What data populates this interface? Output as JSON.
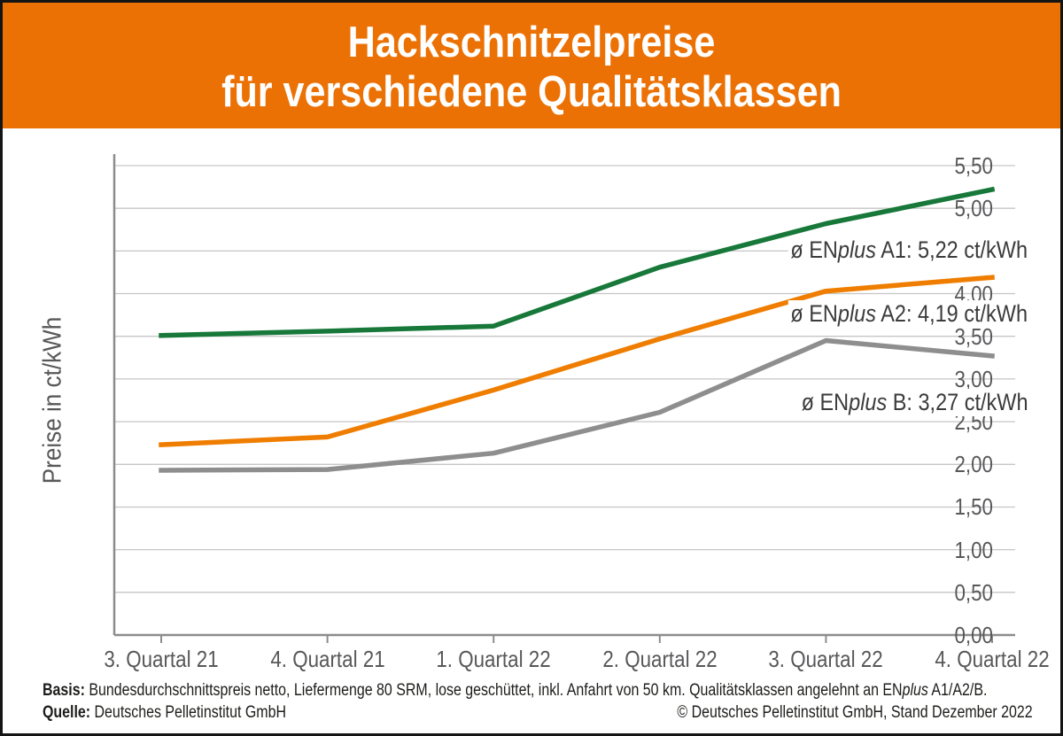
{
  "header": {
    "bg_color": "#ec7104",
    "text_color": "#ffffff",
    "title_line1": "Hackschnitzelpreise",
    "title_line2": "für verschiedene Qualitätsklassen"
  },
  "chart_data": {
    "type": "line",
    "title": "Hackschnitzelpreise für verschiedene Qualitätsklassen",
    "xlabel": "",
    "ylabel": "Preise in ct/kWh",
    "ylim": [
      0,
      5.5
    ],
    "ytick_step": 0.5,
    "ytick_labels": [
      "0,00",
      "0,50",
      "1,00",
      "1,50",
      "2,00",
      "2,50",
      "3,00",
      "3,50",
      "4,00",
      "4,50",
      "5,00",
      "5,50"
    ],
    "grid": true,
    "grid_color": "#c6c6c6",
    "axis_color": "#8c8c8c",
    "tick_text_color": "#58585a",
    "legend_position": "inline-right-of-lines",
    "categories": [
      "3. Quartal 21",
      "4. Quartal 21",
      "1. Quartal 22",
      "2. Quartal 22",
      "3. Quartal 22",
      "4. Quartal 22"
    ],
    "series": [
      {
        "name": "ENplus A1",
        "color": "#17783a",
        "values": [
          3.51,
          3.56,
          3.62,
          4.31,
          4.82,
          5.22
        ]
      },
      {
        "name": "ENplus A2",
        "color": "#ef7d00",
        "values": [
          2.23,
          2.32,
          2.87,
          3.47,
          4.03,
          4.19
        ]
      },
      {
        "name": "ENplus B",
        "color": "#8e8e8e",
        "values": [
          1.93,
          1.94,
          2.13,
          2.61,
          3.45,
          3.27
        ]
      }
    ]
  },
  "annotations": [
    {
      "pre": "ø EN",
      "italic": "plus",
      "post": " A1: 5,22 ct/kWh"
    },
    {
      "pre": "ø EN",
      "italic": "plus",
      "post": " A2: 4,19 ct/kWh"
    },
    {
      "pre": "ø EN",
      "italic": "plus",
      "post": " B: 3,27 ct/kWh"
    }
  ],
  "footer": {
    "basis_label": "Basis:",
    "basis_pre": " Bundesdurchschnittspreis netto, Liefermenge 80 SRM, lose geschüttet, inkl. Anfahrt von 50 km. Qualitätsklassen angelehnt an EN",
    "basis_italic": "plus",
    "basis_post": " A1/A2/B.",
    "quelle_label": "Quelle:",
    "quelle_text": " Deutsches Pelletinstitut GmbH",
    "copyright": "© Deutsches Pelletinstitut GmbH, Stand Dezember 2022"
  }
}
